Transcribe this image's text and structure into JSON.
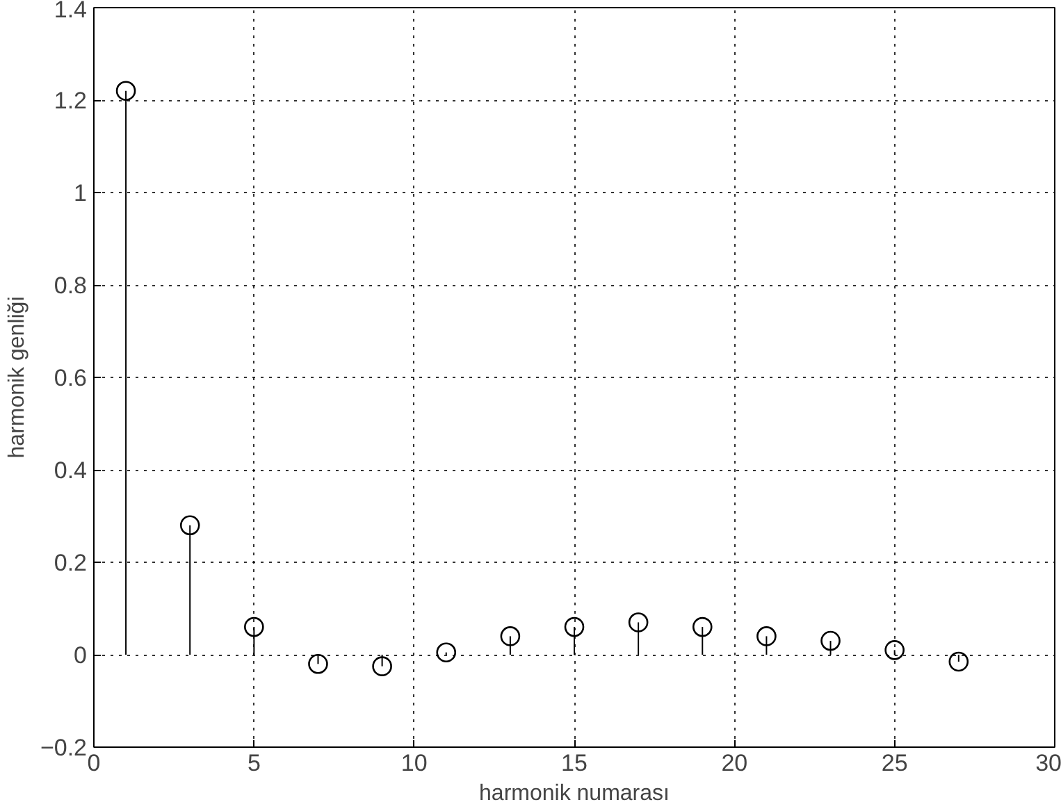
{
  "chart_data": {
    "type": "lollipop",
    "xlabel": "harmonik numarası",
    "ylabel": "harmonik genliği",
    "x": [
      1,
      3,
      5,
      7,
      9,
      11,
      13,
      15,
      17,
      19,
      21,
      23,
      25,
      27
    ],
    "values": [
      1.22,
      0.28,
      0.06,
      -0.02,
      -0.025,
      0.005,
      0.04,
      0.06,
      0.07,
      0.06,
      0.04,
      0.03,
      0.01,
      -0.015
    ],
    "color": "#000000",
    "marker": "circle",
    "grid": true,
    "line_style": "dotted",
    "xlim": [
      0,
      30
    ],
    "xticks": [
      0,
      5,
      10,
      15,
      20,
      25,
      30
    ],
    "ylim": [
      -0.2,
      1.4
    ],
    "yticks": [
      -0.2,
      0,
      0.2,
      0.4,
      0.6,
      0.8,
      1,
      1.2,
      1.4
    ]
  }
}
